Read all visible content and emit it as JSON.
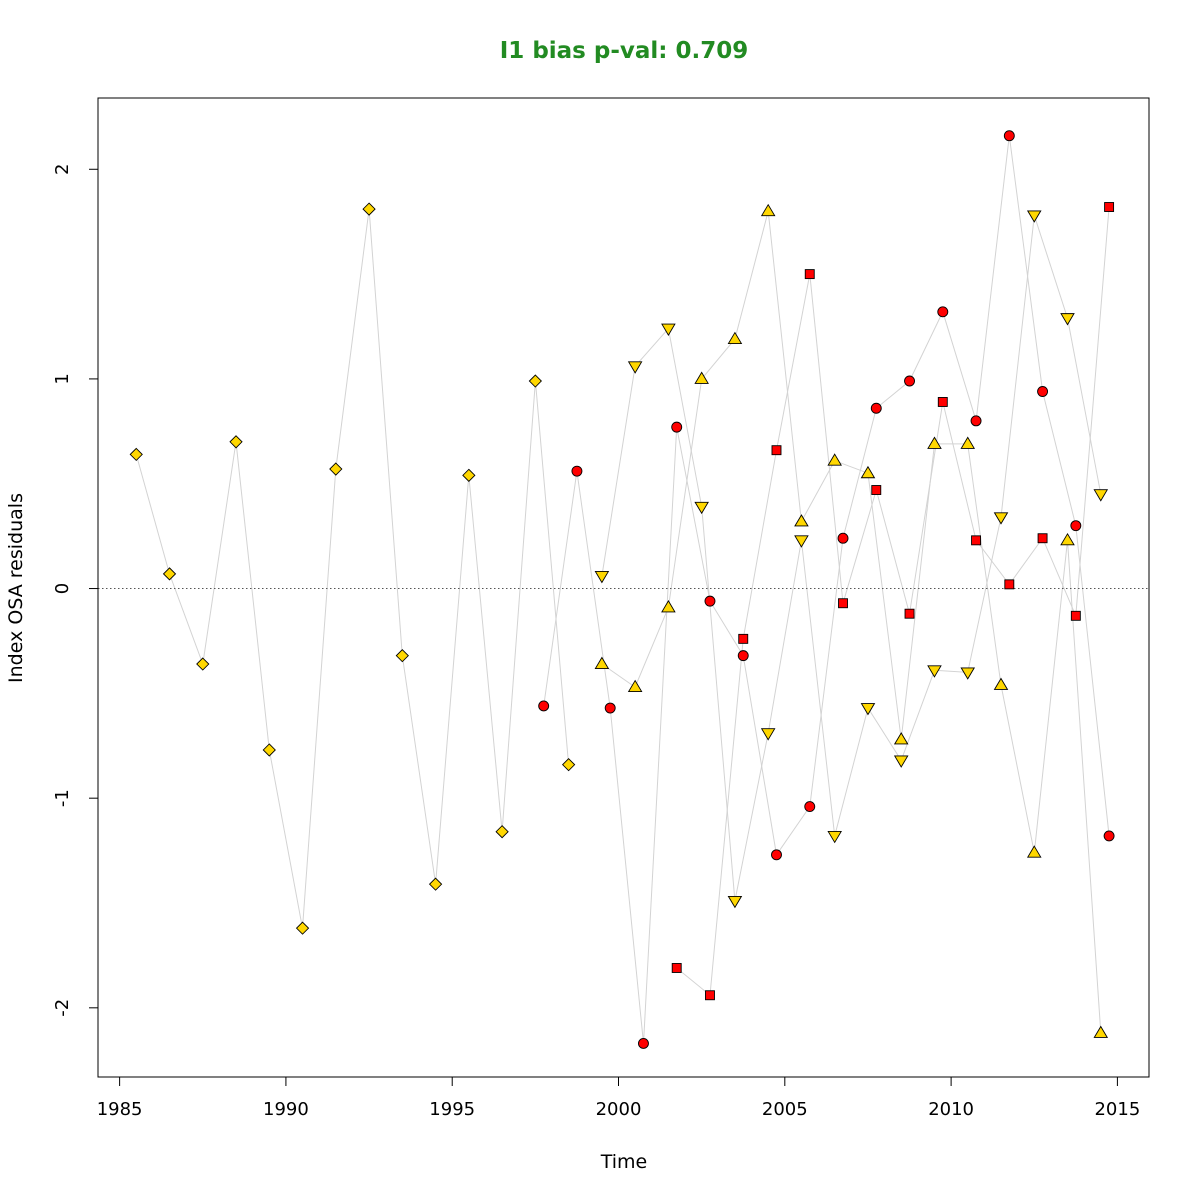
{
  "chart_data": {
    "type": "scatter",
    "title": "I1 bias p-val: 0.709",
    "title_color": "#228B22",
    "xlabel": "Time",
    "ylabel": "Index OSA residuals",
    "xlim": [
      1984.35,
      2015.95
    ],
    "ylim": [
      -2.33,
      2.34
    ],
    "x_ticks": [
      1985,
      1990,
      1995,
      2000,
      2005,
      2010,
      2015
    ],
    "y_ticks": [
      -2,
      -1,
      0,
      1,
      2
    ],
    "reference_line": 0,
    "grid": false,
    "line_color": "#d3d3d3",
    "series": [
      {
        "marker": "diamond",
        "fill": "#FFD700",
        "points": [
          [
            1985.5,
            0.64
          ],
          [
            1986.5,
            0.07
          ],
          [
            1987.5,
            -0.36
          ],
          [
            1988.5,
            0.7
          ],
          [
            1989.5,
            -0.77
          ],
          [
            1990.5,
            -1.62
          ],
          [
            1991.5,
            0.57
          ],
          [
            1992.5,
            1.81
          ],
          [
            1993.5,
            -0.32
          ],
          [
            1994.5,
            -1.41
          ],
          [
            1995.5,
            0.54
          ],
          [
            1996.5,
            -1.16
          ],
          [
            1997.5,
            0.99
          ],
          [
            1998.5,
            -0.84
          ]
        ]
      },
      {
        "marker": "circle",
        "fill": "#FF0000",
        "points": [
          [
            1997.75,
            -0.56
          ],
          [
            1998.75,
            0.56
          ],
          [
            1999.75,
            -0.57
          ],
          [
            2000.75,
            -2.17
          ],
          [
            2001.75,
            0.77
          ],
          [
            2002.75,
            -0.06
          ],
          [
            2003.75,
            -0.32
          ],
          [
            2004.75,
            -1.27
          ],
          [
            2005.75,
            -1.04
          ],
          [
            2006.75,
            0.24
          ],
          [
            2007.75,
            0.86
          ],
          [
            2008.75,
            0.99
          ],
          [
            2009.75,
            1.32
          ],
          [
            2010.75,
            0.8
          ],
          [
            2011.75,
            2.16
          ],
          [
            2012.75,
            0.94
          ],
          [
            2013.75,
            0.3
          ],
          [
            2014.75,
            -1.18
          ]
        ]
      },
      {
        "marker": "triangle-down",
        "fill": "#FFD700",
        "points": [
          [
            1999.5,
            0.06
          ],
          [
            2000.5,
            1.06
          ],
          [
            2001.5,
            1.24
          ],
          [
            2002.5,
            0.39
          ],
          [
            2003.5,
            -1.49
          ],
          [
            2004.5,
            -0.69
          ],
          [
            2005.5,
            0.23
          ],
          [
            2006.5,
            -1.18
          ],
          [
            2007.5,
            -0.57
          ],
          [
            2008.5,
            -0.82
          ],
          [
            2009.5,
            -0.39
          ],
          [
            2010.5,
            -0.4
          ],
          [
            2011.5,
            0.34
          ],
          [
            2012.5,
            1.78
          ],
          [
            2013.5,
            1.29
          ],
          [
            2014.5,
            0.45
          ]
        ]
      },
      {
        "marker": "triangle-up",
        "fill": "#FFD700",
        "points": [
          [
            1999.5,
            -0.36
          ],
          [
            2000.5,
            -0.47
          ],
          [
            2001.5,
            -0.09
          ],
          [
            2002.5,
            1.0
          ],
          [
            2003.5,
            1.19
          ],
          [
            2004.5,
            1.8
          ],
          [
            2005.5,
            0.32
          ],
          [
            2006.5,
            0.61
          ],
          [
            2007.5,
            0.55
          ],
          [
            2008.5,
            -0.72
          ],
          [
            2009.5,
            0.69
          ],
          [
            2010.5,
            0.69
          ],
          [
            2011.5,
            -0.46
          ],
          [
            2012.5,
            -1.26
          ],
          [
            2013.5,
            0.23
          ],
          [
            2014.5,
            -2.12
          ]
        ]
      },
      {
        "marker": "square",
        "fill": "#FF0000",
        "points": [
          [
            2001.75,
            -1.81
          ],
          [
            2002.75,
            -1.94
          ],
          [
            2003.75,
            -0.24
          ],
          [
            2004.75,
            0.66
          ],
          [
            2005.75,
            1.5
          ],
          [
            2006.75,
            -0.07
          ],
          [
            2007.75,
            0.47
          ],
          [
            2008.75,
            -0.12
          ],
          [
            2009.75,
            0.89
          ],
          [
            2010.75,
            0.23
          ],
          [
            2011.75,
            0.02
          ],
          [
            2012.75,
            0.24
          ],
          [
            2013.75,
            -0.13
          ],
          [
            2014.75,
            1.82
          ]
        ]
      }
    ]
  }
}
